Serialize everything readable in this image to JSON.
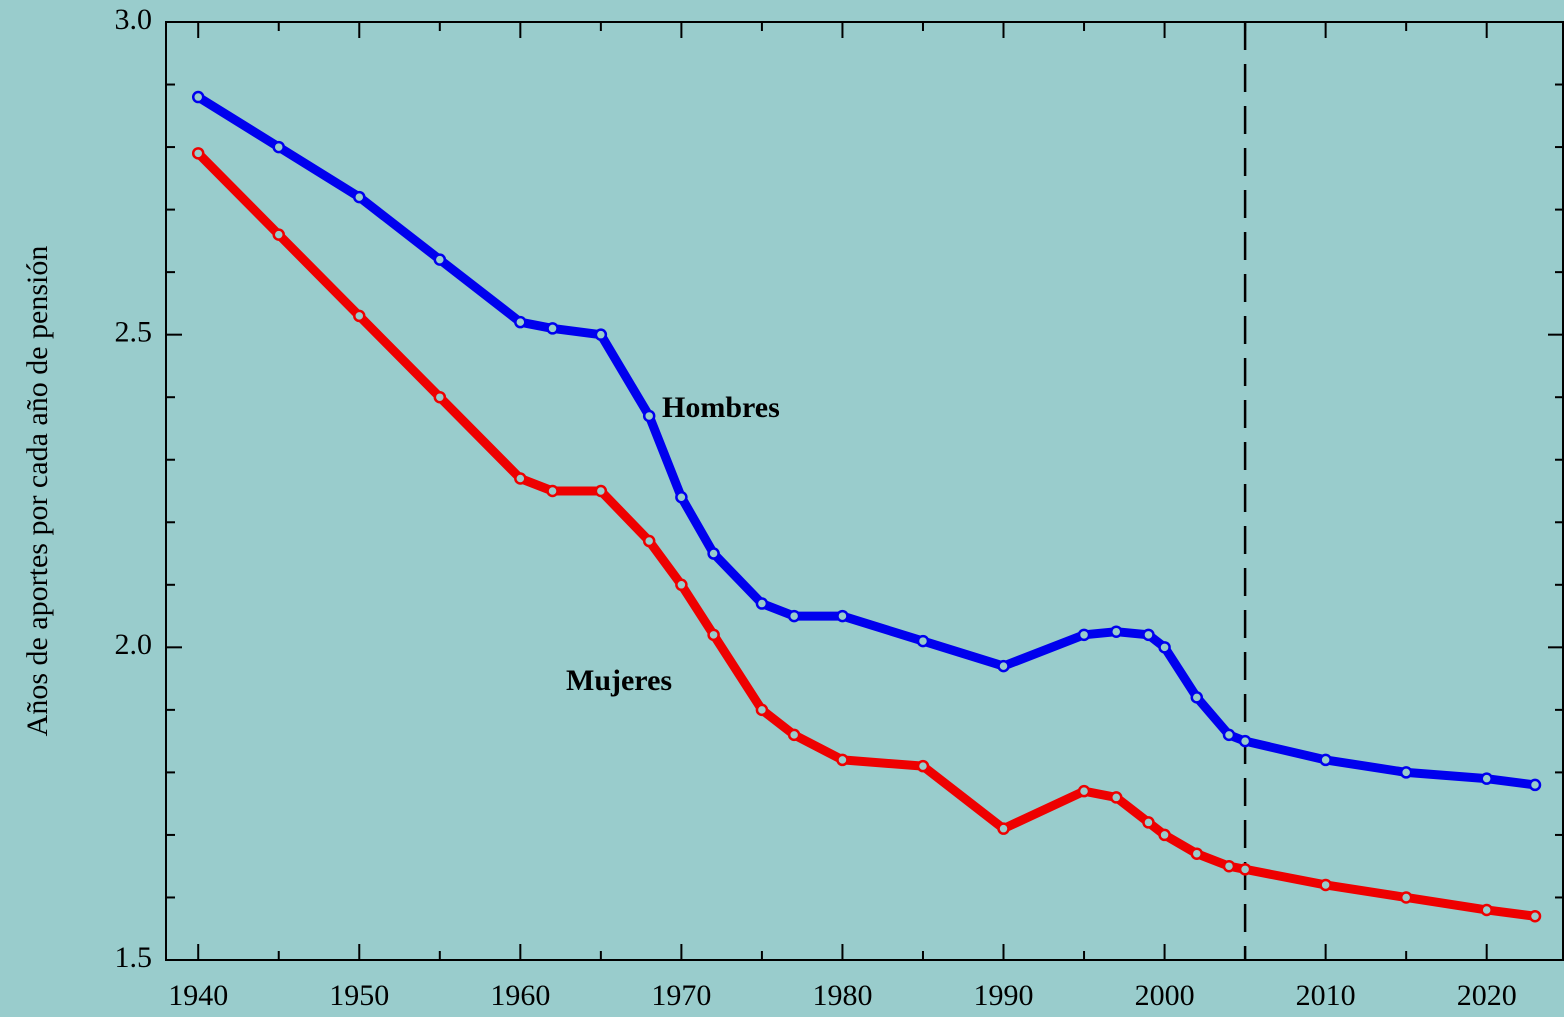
{
  "chart_data": {
    "type": "line",
    "y_label": "Años de aportes por cada año de pensión",
    "x": [
      1940,
      1945,
      1950,
      1955,
      1960,
      1962,
      1965,
      1968,
      1970,
      1972,
      1975,
      1977,
      1980,
      1985,
      1990,
      1995,
      1997,
      1999,
      2000,
      2002,
      2004,
      2005,
      2010,
      2015,
      2020,
      2023
    ],
    "series": [
      {
        "name": "Hombres",
        "color": "#0000ee",
        "values": [
          2.88,
          2.8,
          2.72,
          2.62,
          2.52,
          2.51,
          2.5,
          2.37,
          2.24,
          2.15,
          2.07,
          2.05,
          2.05,
          2.01,
          1.97,
          2.02,
          2.025,
          2.02,
          2.0,
          1.92,
          1.86,
          1.85,
          1.82,
          1.8,
          1.79,
          1.78
        ]
      },
      {
        "name": "Mujeres",
        "color": "#ee0000",
        "values": [
          2.79,
          2.66,
          2.53,
          2.4,
          2.27,
          2.25,
          2.25,
          2.17,
          2.1,
          2.02,
          1.9,
          1.86,
          1.82,
          1.81,
          1.71,
          1.77,
          1.76,
          1.72,
          1.7,
          1.67,
          1.65,
          1.645,
          1.62,
          1.6,
          1.58,
          1.57
        ]
      }
    ],
    "xlim": [
      1938,
      2024.8
    ],
    "xticks": [
      1940,
      1950,
      1960,
      1970,
      1980,
      1990,
      2000,
      2010,
      2020
    ],
    "xminor": [
      1945,
      1955,
      1965,
      1975,
      1985,
      1995,
      2005,
      2015
    ],
    "ylim": [
      1.5,
      3.0
    ],
    "yticks": [
      {
        "value": 1.5,
        "label": "1.5"
      },
      {
        "value": 2.0,
        "label": "2.0"
      },
      {
        "value": 2.5,
        "label": "2.5"
      },
      {
        "value": 3.0,
        "label": "3.0"
      }
    ],
    "yminor": [
      1.6,
      1.7,
      1.8,
      1.9,
      2.1,
      2.2,
      2.3,
      2.4,
      2.6,
      2.7,
      2.8,
      2.9
    ],
    "vline": 2005
  }
}
